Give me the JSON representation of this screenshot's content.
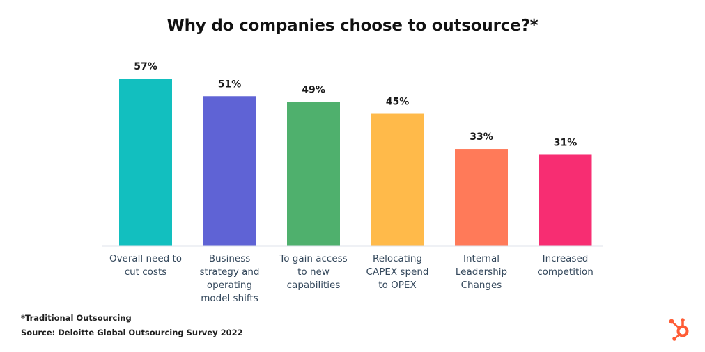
{
  "chart_data": {
    "type": "bar",
    "title": "Why do companies choose to outsource?*",
    "xlabel": "",
    "ylabel": "",
    "ylim": [
      0,
      57
    ],
    "grid": false,
    "legend": "none",
    "categories": [
      "Overall need to cut costs",
      "Business strategy and operating model shifts",
      "To gain access to new capabilities",
      "Relocating CAPEX spend to OPEX",
      "Internal Leadership Changes",
      "Increased competition"
    ],
    "category_lines": [
      [
        "Overall need to",
        "cut costs"
      ],
      [
        "Business",
        "strategy and",
        "operating",
        "model shifts"
      ],
      [
        "To gain access",
        "to new",
        "capabilities"
      ],
      [
        "Relocating",
        "CAPEX spend",
        "to OPEX"
      ],
      [
        "Internal",
        "Leadership",
        "Changes"
      ],
      [
        "Increased",
        "competition"
      ]
    ],
    "values": [
      57,
      51,
      49,
      45,
      33,
      31
    ],
    "value_labels": [
      "57%",
      "51%",
      "49%",
      "45%",
      "33%",
      "31%"
    ],
    "unit": "%",
    "colors": [
      "#12bfbf",
      "#5f63d5",
      "#4fb06d",
      "#ffba4a",
      "#ff7a59",
      "#f72d72"
    ],
    "baseline_color": "#dfe3eb"
  },
  "footnotes": {
    "note": "*Traditional Outsourcing",
    "source": "Source: Deloitte Global Outsourcing Survey 2022"
  },
  "brand": {
    "logo": "hubspot-sprocket-icon",
    "color": "#ff5c35"
  }
}
